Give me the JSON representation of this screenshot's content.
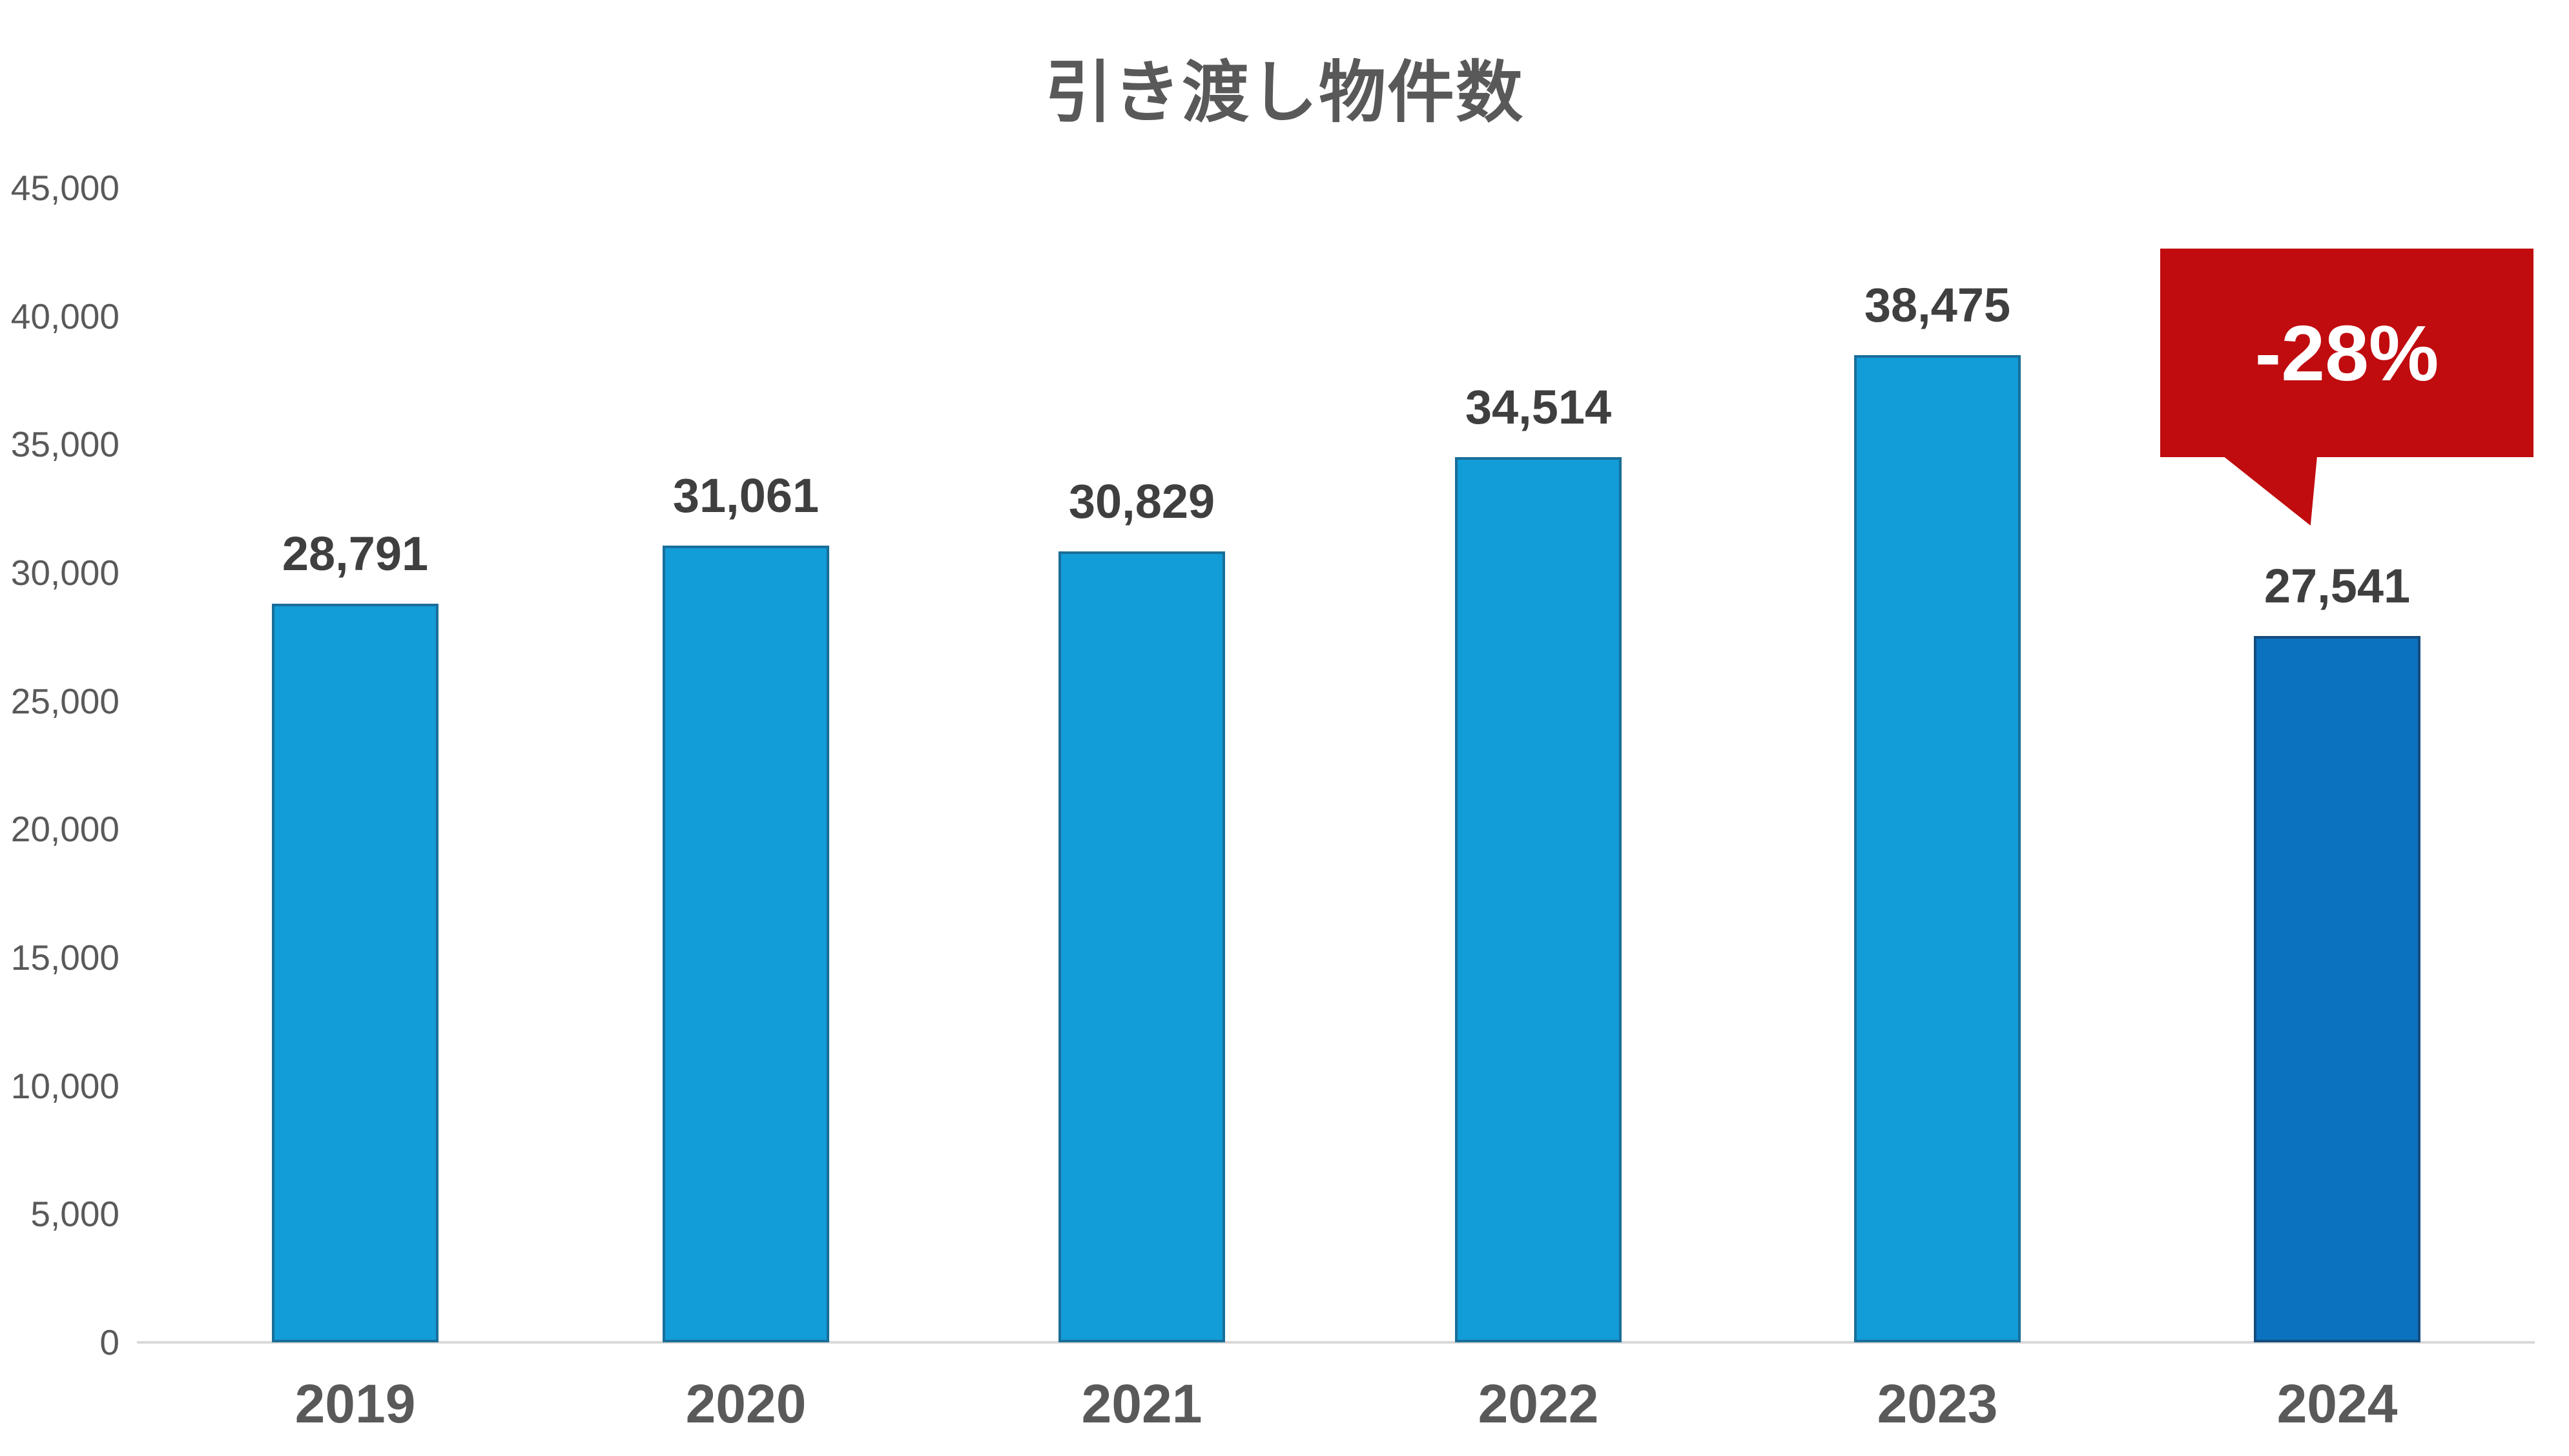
{
  "chart": {
    "title": "引き渡し物件数",
    "annotation": {
      "text": "-28%",
      "attached_to": "2024"
    },
    "colors": {
      "bar_fill": "#129cd8",
      "bar_border": "#1a6e99",
      "highlight_bar_fill": "#0b72bf",
      "highlight_bar_border": "#144d7e",
      "callout_red": "#c00b0f",
      "title_gray": "#595959",
      "data_label_gray": "#3f3f3f",
      "axis_line_gray": "#d9d9d9"
    }
  },
  "chart_data": {
    "type": "bar",
    "title": "引き渡し物件数",
    "categories": [
      "2019",
      "2020",
      "2021",
      "2022",
      "2023",
      "2024"
    ],
    "values": [
      28791,
      31061,
      30829,
      34514,
      38475,
      27541
    ],
    "value_labels": [
      "28,791",
      "31,061",
      "30,829",
      "34,514",
      "38,475",
      "27,541"
    ],
    "xlabel": "",
    "ylabel": "",
    "ylim": [
      0,
      45000
    ],
    "ytick_step": 5000,
    "ytick_labels": [
      "0",
      "5,000",
      "10,000",
      "15,000",
      "20,000",
      "25,000",
      "30,000",
      "35,000",
      "40,000",
      "45,000"
    ],
    "grid": false,
    "legend": false,
    "bar_fills": [
      "#129cd8",
      "#129cd8",
      "#129cd8",
      "#129cd8",
      "#129cd8",
      "#0b72bf"
    ],
    "bar_borders": [
      "#1a6e99",
      "#1a6e99",
      "#1a6e99",
      "#1a6e99",
      "#1a6e99",
      "#144d7e"
    ],
    "annotations": [
      {
        "text": "-28%",
        "target_category": "2024",
        "shape": "speech-bubble",
        "fill": "#c00b0f",
        "text_color": "#ffffff"
      }
    ]
  }
}
